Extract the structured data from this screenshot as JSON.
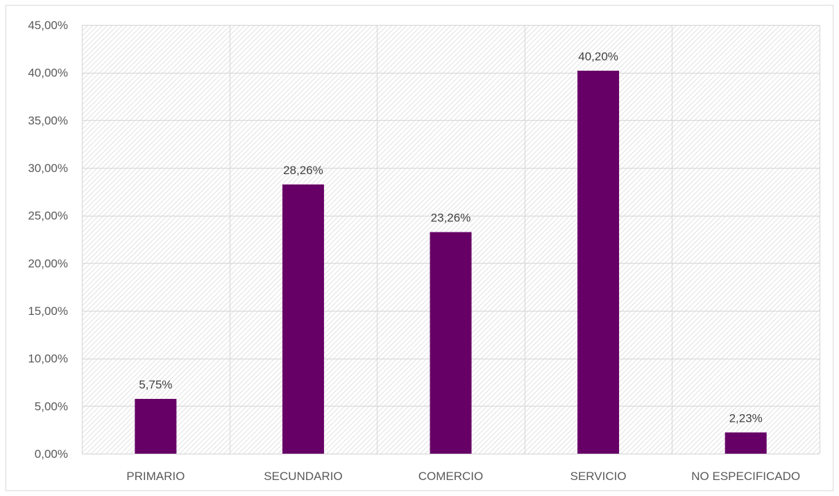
{
  "chart_data": {
    "type": "bar",
    "title": "",
    "xlabel": "",
    "ylabel": "",
    "categories": [
      "PRIMARIO",
      "SECUNDARIO",
      "COMERCIO",
      "SERVICIO",
      "NO ESPECIFICADO"
    ],
    "values": [
      5.75,
      28.26,
      23.26,
      40.2,
      2.23
    ],
    "data_labels": [
      "5,75%",
      "28,26%",
      "23,26%",
      "40,20%",
      "2,23%"
    ],
    "ylim": [
      0,
      45
    ],
    "yticks": [
      0,
      5,
      10,
      15,
      20,
      25,
      30,
      35,
      40,
      45
    ],
    "ytick_labels": [
      "0,00%",
      "5,00%",
      "10,00%",
      "15,00%",
      "20,00%",
      "25,00%",
      "30,00%",
      "35,00%",
      "40,00%",
      "45,00%"
    ],
    "grid": true,
    "legend": "none",
    "bar_color": "#660066",
    "plot_background": "hatched light gray"
  }
}
